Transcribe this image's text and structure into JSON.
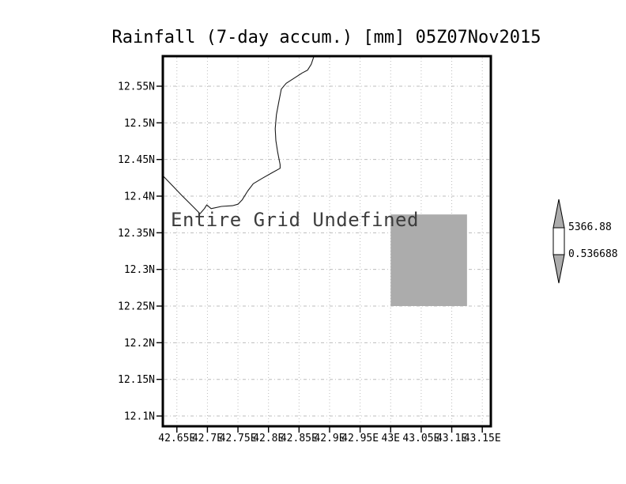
{
  "title": "Rainfall (7-day accum.) [mm] 05Z07Nov2015",
  "overlay_message": "Entire Grid Undefined",
  "colorbar": {
    "max_label": "5366.88",
    "min_label": "0.536688",
    "arrow_fill": "#acacac",
    "box_fill": "#ffffff"
  },
  "chart_data": {
    "type": "heatmap",
    "subtype": "grads-grid-fill-map",
    "title": "Rainfall (7-day accum.) [mm] 05Z07Nov2015",
    "annotation": "Entire Grid Undefined",
    "grid": {
      "visible": true,
      "style": "dotted",
      "color": "#bcbcbc"
    },
    "legend_position": "right",
    "x_axis": {
      "range": [
        42.627,
        43.164
      ],
      "ticks": [
        42.65,
        42.7,
        42.75,
        42.8,
        42.85,
        42.9,
        42.95,
        43.0,
        43.05,
        43.1,
        43.15
      ],
      "tick_labels": [
        "42.65E",
        "42.7E",
        "42.75E",
        "42.8E",
        "42.85E",
        "42.9E",
        "42.95E",
        "43E",
        "43.05E",
        "43.1E",
        "43.15E"
      ]
    },
    "y_axis": {
      "range": [
        12.086,
        12.591
      ],
      "ticks": [
        12.55,
        12.5,
        12.45,
        12.4,
        12.35,
        12.3,
        12.25,
        12.2,
        12.15,
        12.1
      ],
      "tick_labels": [
        "12.55N",
        "12.5N",
        "12.45N",
        "12.4N",
        "12.35N",
        "12.3N",
        "12.25N",
        "12.2N",
        "12.15N",
        "12.1N"
      ]
    },
    "shaded_cells": [
      {
        "lon_min": 43.0,
        "lon_max": 43.125,
        "lat_min": 12.25,
        "lat_max": 12.375,
        "color": "#acacac"
      }
    ],
    "coastline": [
      [
        42.874,
        12.59
      ],
      [
        42.87,
        12.58
      ],
      [
        42.864,
        12.572
      ],
      [
        42.855,
        12.568
      ],
      [
        42.842,
        12.561
      ],
      [
        42.829,
        12.554
      ],
      [
        42.821,
        12.546
      ],
      [
        42.817,
        12.529
      ],
      [
        42.813,
        12.511
      ],
      [
        42.811,
        12.492
      ],
      [
        42.812,
        12.476
      ],
      [
        42.815,
        12.46
      ],
      [
        42.819,
        12.443
      ],
      [
        42.819,
        12.438
      ],
      [
        42.806,
        12.432
      ],
      [
        42.789,
        12.424
      ],
      [
        42.775,
        12.417
      ],
      [
        42.766,
        12.407
      ],
      [
        42.757,
        12.395
      ],
      [
        42.75,
        12.389
      ],
      [
        42.741,
        12.387
      ],
      [
        42.723,
        12.386
      ],
      [
        42.706,
        12.383
      ],
      [
        42.699,
        12.388
      ],
      [
        42.695,
        12.383
      ],
      [
        42.688,
        12.376
      ],
      [
        42.675,
        12.387
      ],
      [
        42.658,
        12.401
      ],
      [
        42.643,
        12.414
      ],
      [
        42.627,
        12.428
      ]
    ],
    "colorbar": {
      "labels": [
        "5366.88",
        "0.536688"
      ],
      "max": 5366.88,
      "min": 0.536688,
      "arrow_fill": "#acacac",
      "box_fill": "#ffffff"
    }
  }
}
